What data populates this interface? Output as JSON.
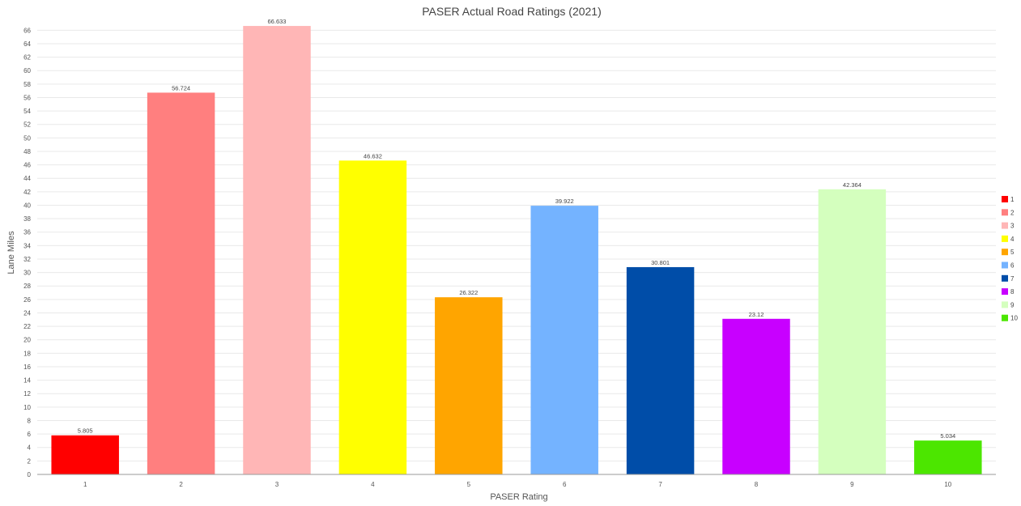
{
  "chart_data": {
    "type": "bar",
    "title": "PASER Actual Road Ratings (2021)",
    "xlabel": "PASER Rating",
    "ylabel": "Lane Miles",
    "categories": [
      "1",
      "2",
      "3",
      "4",
      "5",
      "6",
      "7",
      "8",
      "9",
      "10"
    ],
    "values": [
      5.805,
      56.724,
      66.633,
      46.632,
      26.322,
      39.922,
      30.801,
      23.12,
      42.364,
      5.034
    ],
    "data_labels": [
      "5.805",
      "56.724",
      "66.633",
      "46.632",
      "26.322",
      "39.922",
      "30.801",
      "23.12",
      "42.364",
      "5.034"
    ],
    "colors": [
      "#ff0000",
      "#ff7f7f",
      "#ffb6b6",
      "#ffff00",
      "#ffa500",
      "#74b3ff",
      "#004da8",
      "#c800ff",
      "#d4ffbe",
      "#4ce600"
    ],
    "ylim": [
      0,
      67
    ],
    "yticks": [
      0,
      2,
      4,
      6,
      8,
      10,
      12,
      14,
      16,
      18,
      20,
      22,
      24,
      26,
      28,
      30,
      32,
      34,
      36,
      38,
      40,
      42,
      44,
      46,
      48,
      50,
      52,
      54,
      56,
      58,
      60,
      62,
      64,
      66
    ],
    "grid": true,
    "legend": {
      "position": "right",
      "entries": [
        "1",
        "2",
        "3",
        "4",
        "5",
        "6",
        "7",
        "8",
        "9",
        "10"
      ]
    }
  }
}
